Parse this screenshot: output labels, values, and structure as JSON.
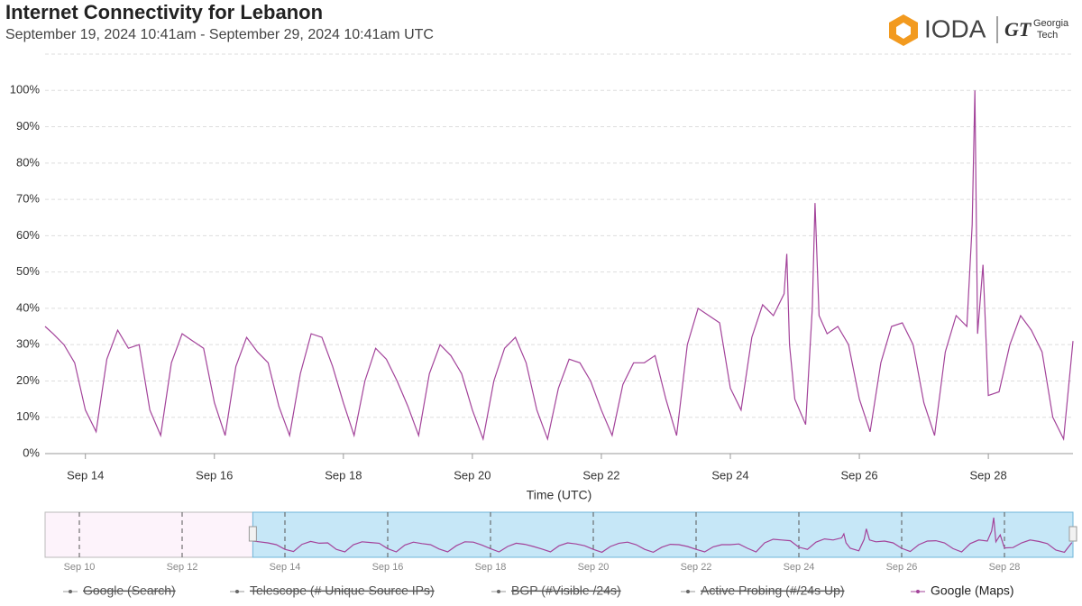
{
  "chart_data": {
    "type": "line",
    "title": "Internet Connectivity for Lebanon",
    "subtitle": "September 19, 2024 10:41am - September 29, 2024 10:41am UTC",
    "logo": {
      "text": "IODA",
      "mark": "GT",
      "partner_top": "Georgia",
      "partner_bottom": "Tech"
    },
    "x_label": "Time (UTC)",
    "xlim": [
      "2024-09-13T09:00",
      "2024-09-29T07:30"
    ],
    "xticks": [
      {
        "value": "2024-09-14T00:00",
        "label": "Sep 14"
      },
      {
        "value": "2024-09-16T00:00",
        "label": "Sep 16"
      },
      {
        "value": "2024-09-18T00:00",
        "label": "Sep 18"
      },
      {
        "value": "2024-09-20T00:00",
        "label": "Sep 20"
      },
      {
        "value": "2024-09-22T00:00",
        "label": "Sep 22"
      },
      {
        "value": "2024-09-24T00:00",
        "label": "Sep 24"
      },
      {
        "value": "2024-09-26T00:00",
        "label": "Sep 26"
      },
      {
        "value": "2024-09-28T00:00",
        "label": "Sep 28"
      }
    ],
    "ylim": [
      0,
      110
    ],
    "yticks": [
      {
        "value": 0,
        "label": "0%"
      },
      {
        "value": 10,
        "label": "10%"
      },
      {
        "value": 20,
        "label": "20%"
      },
      {
        "value": 30,
        "label": "30%"
      },
      {
        "value": 40,
        "label": "40%"
      },
      {
        "value": 50,
        "label": "50%"
      },
      {
        "value": 60,
        "label": "60%"
      },
      {
        "value": 70,
        "label": "70%"
      },
      {
        "value": 80,
        "label": "80%"
      },
      {
        "value": 90,
        "label": "90%"
      },
      {
        "value": 100,
        "label": "100%"
      }
    ],
    "grid": true,
    "x": [
      "2024-09-13T09:00",
      "2024-09-13T12:00",
      "2024-09-13T16:00",
      "2024-09-13T20:00",
      "2024-09-14T00:00",
      "2024-09-14T04:00",
      "2024-09-14T08:00",
      "2024-09-14T12:00",
      "2024-09-14T16:00",
      "2024-09-14T20:00",
      "2024-09-15T00:00",
      "2024-09-15T04:00",
      "2024-09-15T08:00",
      "2024-09-15T12:00",
      "2024-09-15T16:00",
      "2024-09-15T20:00",
      "2024-09-16T00:00",
      "2024-09-16T04:00",
      "2024-09-16T08:00",
      "2024-09-16T12:00",
      "2024-09-16T16:00",
      "2024-09-16T20:00",
      "2024-09-17T00:00",
      "2024-09-17T04:00",
      "2024-09-17T08:00",
      "2024-09-17T12:00",
      "2024-09-17T16:00",
      "2024-09-17T20:00",
      "2024-09-18T00:00",
      "2024-09-18T04:00",
      "2024-09-18T08:00",
      "2024-09-18T12:00",
      "2024-09-18T16:00",
      "2024-09-18T20:00",
      "2024-09-19T00:00",
      "2024-09-19T04:00",
      "2024-09-19T08:00",
      "2024-09-19T12:00",
      "2024-09-19T16:00",
      "2024-09-19T20:00",
      "2024-09-20T00:00",
      "2024-09-20T04:00",
      "2024-09-20T08:00",
      "2024-09-20T12:00",
      "2024-09-20T16:00",
      "2024-09-20T20:00",
      "2024-09-21T00:00",
      "2024-09-21T04:00",
      "2024-09-21T08:00",
      "2024-09-21T12:00",
      "2024-09-21T16:00",
      "2024-09-21T20:00",
      "2024-09-22T00:00",
      "2024-09-22T04:00",
      "2024-09-22T08:00",
      "2024-09-22T12:00",
      "2024-09-22T16:00",
      "2024-09-22T20:00",
      "2024-09-23T00:00",
      "2024-09-23T04:00",
      "2024-09-23T08:00",
      "2024-09-23T12:00",
      "2024-09-23T16:00",
      "2024-09-23T20:00",
      "2024-09-24T00:00",
      "2024-09-24T04:00",
      "2024-09-24T08:00",
      "2024-09-24T12:00",
      "2024-09-24T16:00",
      "2024-09-24T20:00",
      "2024-09-24T21:00",
      "2024-09-24T22:00",
      "2024-09-25T00:00",
      "2024-09-25T04:00",
      "2024-09-25T06:30",
      "2024-09-25T07:30",
      "2024-09-25T09:00",
      "2024-09-25T12:00",
      "2024-09-25T16:00",
      "2024-09-25T20:00",
      "2024-09-26T00:00",
      "2024-09-26T04:00",
      "2024-09-26T08:00",
      "2024-09-26T12:00",
      "2024-09-26T16:00",
      "2024-09-26T20:00",
      "2024-09-27T00:00",
      "2024-09-27T04:00",
      "2024-09-27T08:00",
      "2024-09-27T12:00",
      "2024-09-27T16:00",
      "2024-09-27T18:00",
      "2024-09-27T19:00",
      "2024-09-27T20:00",
      "2024-09-27T22:00",
      "2024-09-28T00:00",
      "2024-09-28T04:00",
      "2024-09-28T08:00",
      "2024-09-28T12:00",
      "2024-09-28T16:00",
      "2024-09-28T20:00",
      "2024-09-29T00:00",
      "2024-09-29T04:00",
      "2024-09-29T07:30"
    ],
    "series": [
      {
        "name": "Google (Maps)",
        "color": "#a3439a",
        "values": [
          35,
          33,
          30,
          25,
          12,
          6,
          26,
          34,
          29,
          30,
          12,
          5,
          25,
          33,
          31,
          29,
          14,
          5,
          24,
          32,
          28,
          25,
          13,
          5,
          22,
          33,
          32,
          24,
          14,
          5,
          20,
          29,
          26,
          20,
          13,
          5,
          22,
          30,
          27,
          22,
          12,
          4,
          20,
          29,
          32,
          25,
          12,
          4,
          18,
          26,
          25,
          20,
          12,
          5,
          19,
          25,
          25,
          27,
          15,
          5,
          30,
          40,
          38,
          36,
          18,
          12,
          32,
          41,
          38,
          44,
          55,
          30,
          15,
          8,
          40,
          69,
          38,
          33,
          35,
          30,
          15,
          6,
          25,
          35,
          36,
          30,
          14,
          5,
          28,
          38,
          35,
          63,
          100,
          33,
          52,
          16,
          17,
          30,
          38,
          34,
          28,
          10,
          4,
          31
        ]
      }
    ],
    "hidden_series": [
      "Google (Search)",
      "Telescope (# Unique Source IPs)",
      "BGP (#Visible /24s)",
      "Active Probing (#/24s Up)"
    ],
    "navigator": {
      "xlim": [
        "2024-09-09T08:00",
        "2024-09-29T08:00"
      ],
      "selection_start": "2024-09-13T09:00",
      "xticks": [
        {
          "value": "2024-09-10T00:00",
          "label": "Sep 10"
        },
        {
          "value": "2024-09-12T00:00",
          "label": "Sep 12"
        },
        {
          "value": "2024-09-14T00:00",
          "label": "Sep 14"
        },
        {
          "value": "2024-09-16T00:00",
          "label": "Sep 16"
        },
        {
          "value": "2024-09-18T00:00",
          "label": "Sep 18"
        },
        {
          "value": "2024-09-20T00:00",
          "label": "Sep 20"
        },
        {
          "value": "2024-09-22T00:00",
          "label": "Sep 22"
        },
        {
          "value": "2024-09-24T00:00",
          "label": "Sep 24"
        },
        {
          "value": "2024-09-26T00:00",
          "label": "Sep 26"
        },
        {
          "value": "2024-09-28T00:00",
          "label": "Sep 28"
        }
      ]
    }
  }
}
